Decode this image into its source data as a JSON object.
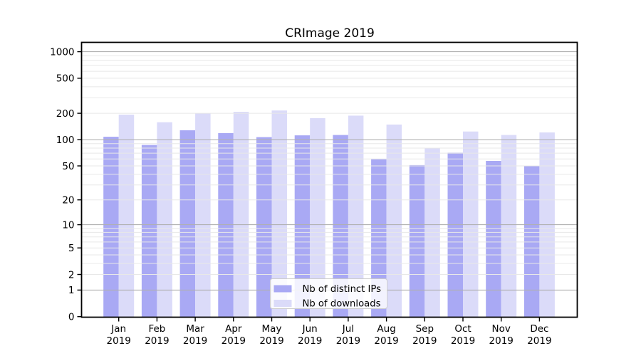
{
  "chart_data": {
    "type": "bar",
    "title": "CRImage 2019",
    "categories": [
      "Jan",
      "Feb",
      "Mar",
      "Apr",
      "May",
      "Jun",
      "Jul",
      "Aug",
      "Sep",
      "Oct",
      "Nov",
      "Dec"
    ],
    "year_label": "2019",
    "series": [
      {
        "name": "Nb of distinct IPs",
        "color": "#a9a9f4",
        "values": [
          108,
          87,
          128,
          119,
          107,
          112,
          113,
          60,
          51,
          71,
          57,
          50
        ]
      },
      {
        "name": "Nb of downloads",
        "color": "#dbdbf9",
        "values": [
          193,
          158,
          200,
          208,
          215,
          176,
          188,
          149,
          80,
          124,
          113,
          121
        ]
      }
    ],
    "y_ticks": [
      0,
      1,
      2,
      5,
      10,
      20,
      50,
      100,
      200,
      500,
      1000
    ],
    "y_scale": "log1p",
    "ylim": [
      0,
      1000
    ],
    "xlabel": "",
    "ylabel": "",
    "grid": true,
    "major_gridlines_at": [
      1,
      10,
      100,
      1000
    ],
    "legend_position": "lower-center",
    "colors": {
      "ips_bar": "#a9a9f4",
      "downloads_bar": "#dbdbf9",
      "major_grid": "#b0b0b0",
      "minor_grid": "#e8e8e8",
      "spine": "#000000",
      "legend_border": "#cccccc",
      "legend_bg": "#ffffff",
      "background": "#ffffff"
    }
  }
}
